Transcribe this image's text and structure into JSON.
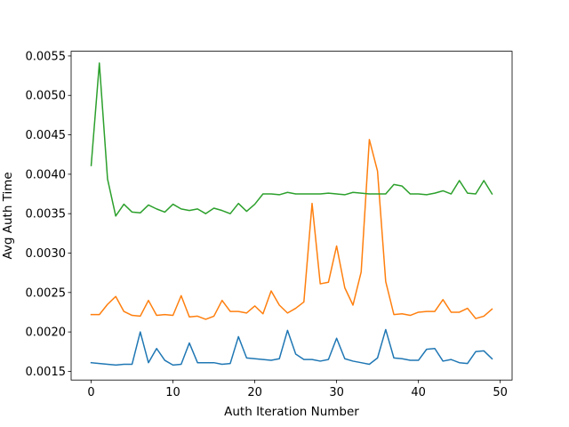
{
  "chart_data": {
    "type": "line",
    "title": "",
    "xlabel": "Auth Iteration Number",
    "ylabel": "Avg Auth Time",
    "xlim": [
      -2.45,
      51.45
    ],
    "ylim": [
      0.00139,
      0.00556
    ],
    "xticks": [
      0,
      10,
      20,
      30,
      40,
      50
    ],
    "xtick_labels": [
      "0",
      "10",
      "20",
      "30",
      "40",
      "50"
    ],
    "yticks": [
      0.0015,
      0.002,
      0.0025,
      0.003,
      0.0035,
      0.004,
      0.0045,
      0.005,
      0.0055
    ],
    "ytick_labels": [
      "0.0015",
      "0.0020",
      "0.0025",
      "0.0030",
      "0.0035",
      "0.0040",
      "0.0045",
      "0.0050",
      "0.0055"
    ],
    "grid": false,
    "x": [
      0,
      1,
      2,
      3,
      4,
      5,
      6,
      7,
      8,
      9,
      10,
      11,
      12,
      13,
      14,
      15,
      16,
      17,
      18,
      19,
      20,
      21,
      22,
      23,
      24,
      25,
      26,
      27,
      28,
      29,
      30,
      31,
      32,
      33,
      34,
      35,
      36,
      37,
      38,
      39,
      40,
      41,
      42,
      43,
      44,
      45,
      46,
      47,
      48,
      49
    ],
    "series": [
      {
        "name": "series-blue",
        "color": "#1f77b4",
        "values": [
          0.00161,
          0.0016,
          0.00159,
          0.00158,
          0.00159,
          0.00159,
          0.002,
          0.00161,
          0.00179,
          0.00164,
          0.00158,
          0.00159,
          0.00186,
          0.00161,
          0.00161,
          0.00161,
          0.00159,
          0.0016,
          0.00194,
          0.00167,
          0.00166,
          0.00165,
          0.00164,
          0.00166,
          0.00202,
          0.00172,
          0.00165,
          0.00165,
          0.00163,
          0.00165,
          0.00192,
          0.00166,
          0.00163,
          0.00161,
          0.00159,
          0.00167,
          0.00203,
          0.00167,
          0.00166,
          0.00164,
          0.00164,
          0.00178,
          0.00179,
          0.00163,
          0.00165,
          0.00161,
          0.0016,
          0.00175,
          0.00176,
          0.00166
        ]
      },
      {
        "name": "series-orange",
        "color": "#ff7f0e",
        "values": [
          0.00222,
          0.00222,
          0.00235,
          0.00245,
          0.00226,
          0.00221,
          0.0022,
          0.0024,
          0.00221,
          0.00222,
          0.00221,
          0.00246,
          0.00219,
          0.0022,
          0.00216,
          0.0022,
          0.0024,
          0.00226,
          0.00226,
          0.00224,
          0.00233,
          0.00223,
          0.00252,
          0.00234,
          0.00224,
          0.0023,
          0.00238,
          0.00363,
          0.00261,
          0.00263,
          0.00309,
          0.00256,
          0.00234,
          0.00276,
          0.00444,
          0.00404,
          0.00264,
          0.00222,
          0.00223,
          0.00221,
          0.00225,
          0.00226,
          0.00226,
          0.00241,
          0.00225,
          0.00225,
          0.0023,
          0.00217,
          0.0022,
          0.00229
        ]
      },
      {
        "name": "series-green",
        "color": "#2ca02c",
        "values": [
          0.00411,
          0.00541,
          0.00394,
          0.00347,
          0.00362,
          0.00352,
          0.00351,
          0.00361,
          0.00356,
          0.00352,
          0.00362,
          0.00356,
          0.00354,
          0.00356,
          0.0035,
          0.00357,
          0.00354,
          0.0035,
          0.00363,
          0.00353,
          0.00362,
          0.00375,
          0.00375,
          0.00374,
          0.00377,
          0.00375,
          0.00375,
          0.00375,
          0.00375,
          0.00376,
          0.00375,
          0.00374,
          0.00377,
          0.00376,
          0.00375,
          0.00375,
          0.00375,
          0.00387,
          0.00385,
          0.00375,
          0.00375,
          0.00374,
          0.00376,
          0.00379,
          0.00375,
          0.00392,
          0.00376,
          0.00375,
          0.00392,
          0.00375
        ]
      }
    ]
  }
}
